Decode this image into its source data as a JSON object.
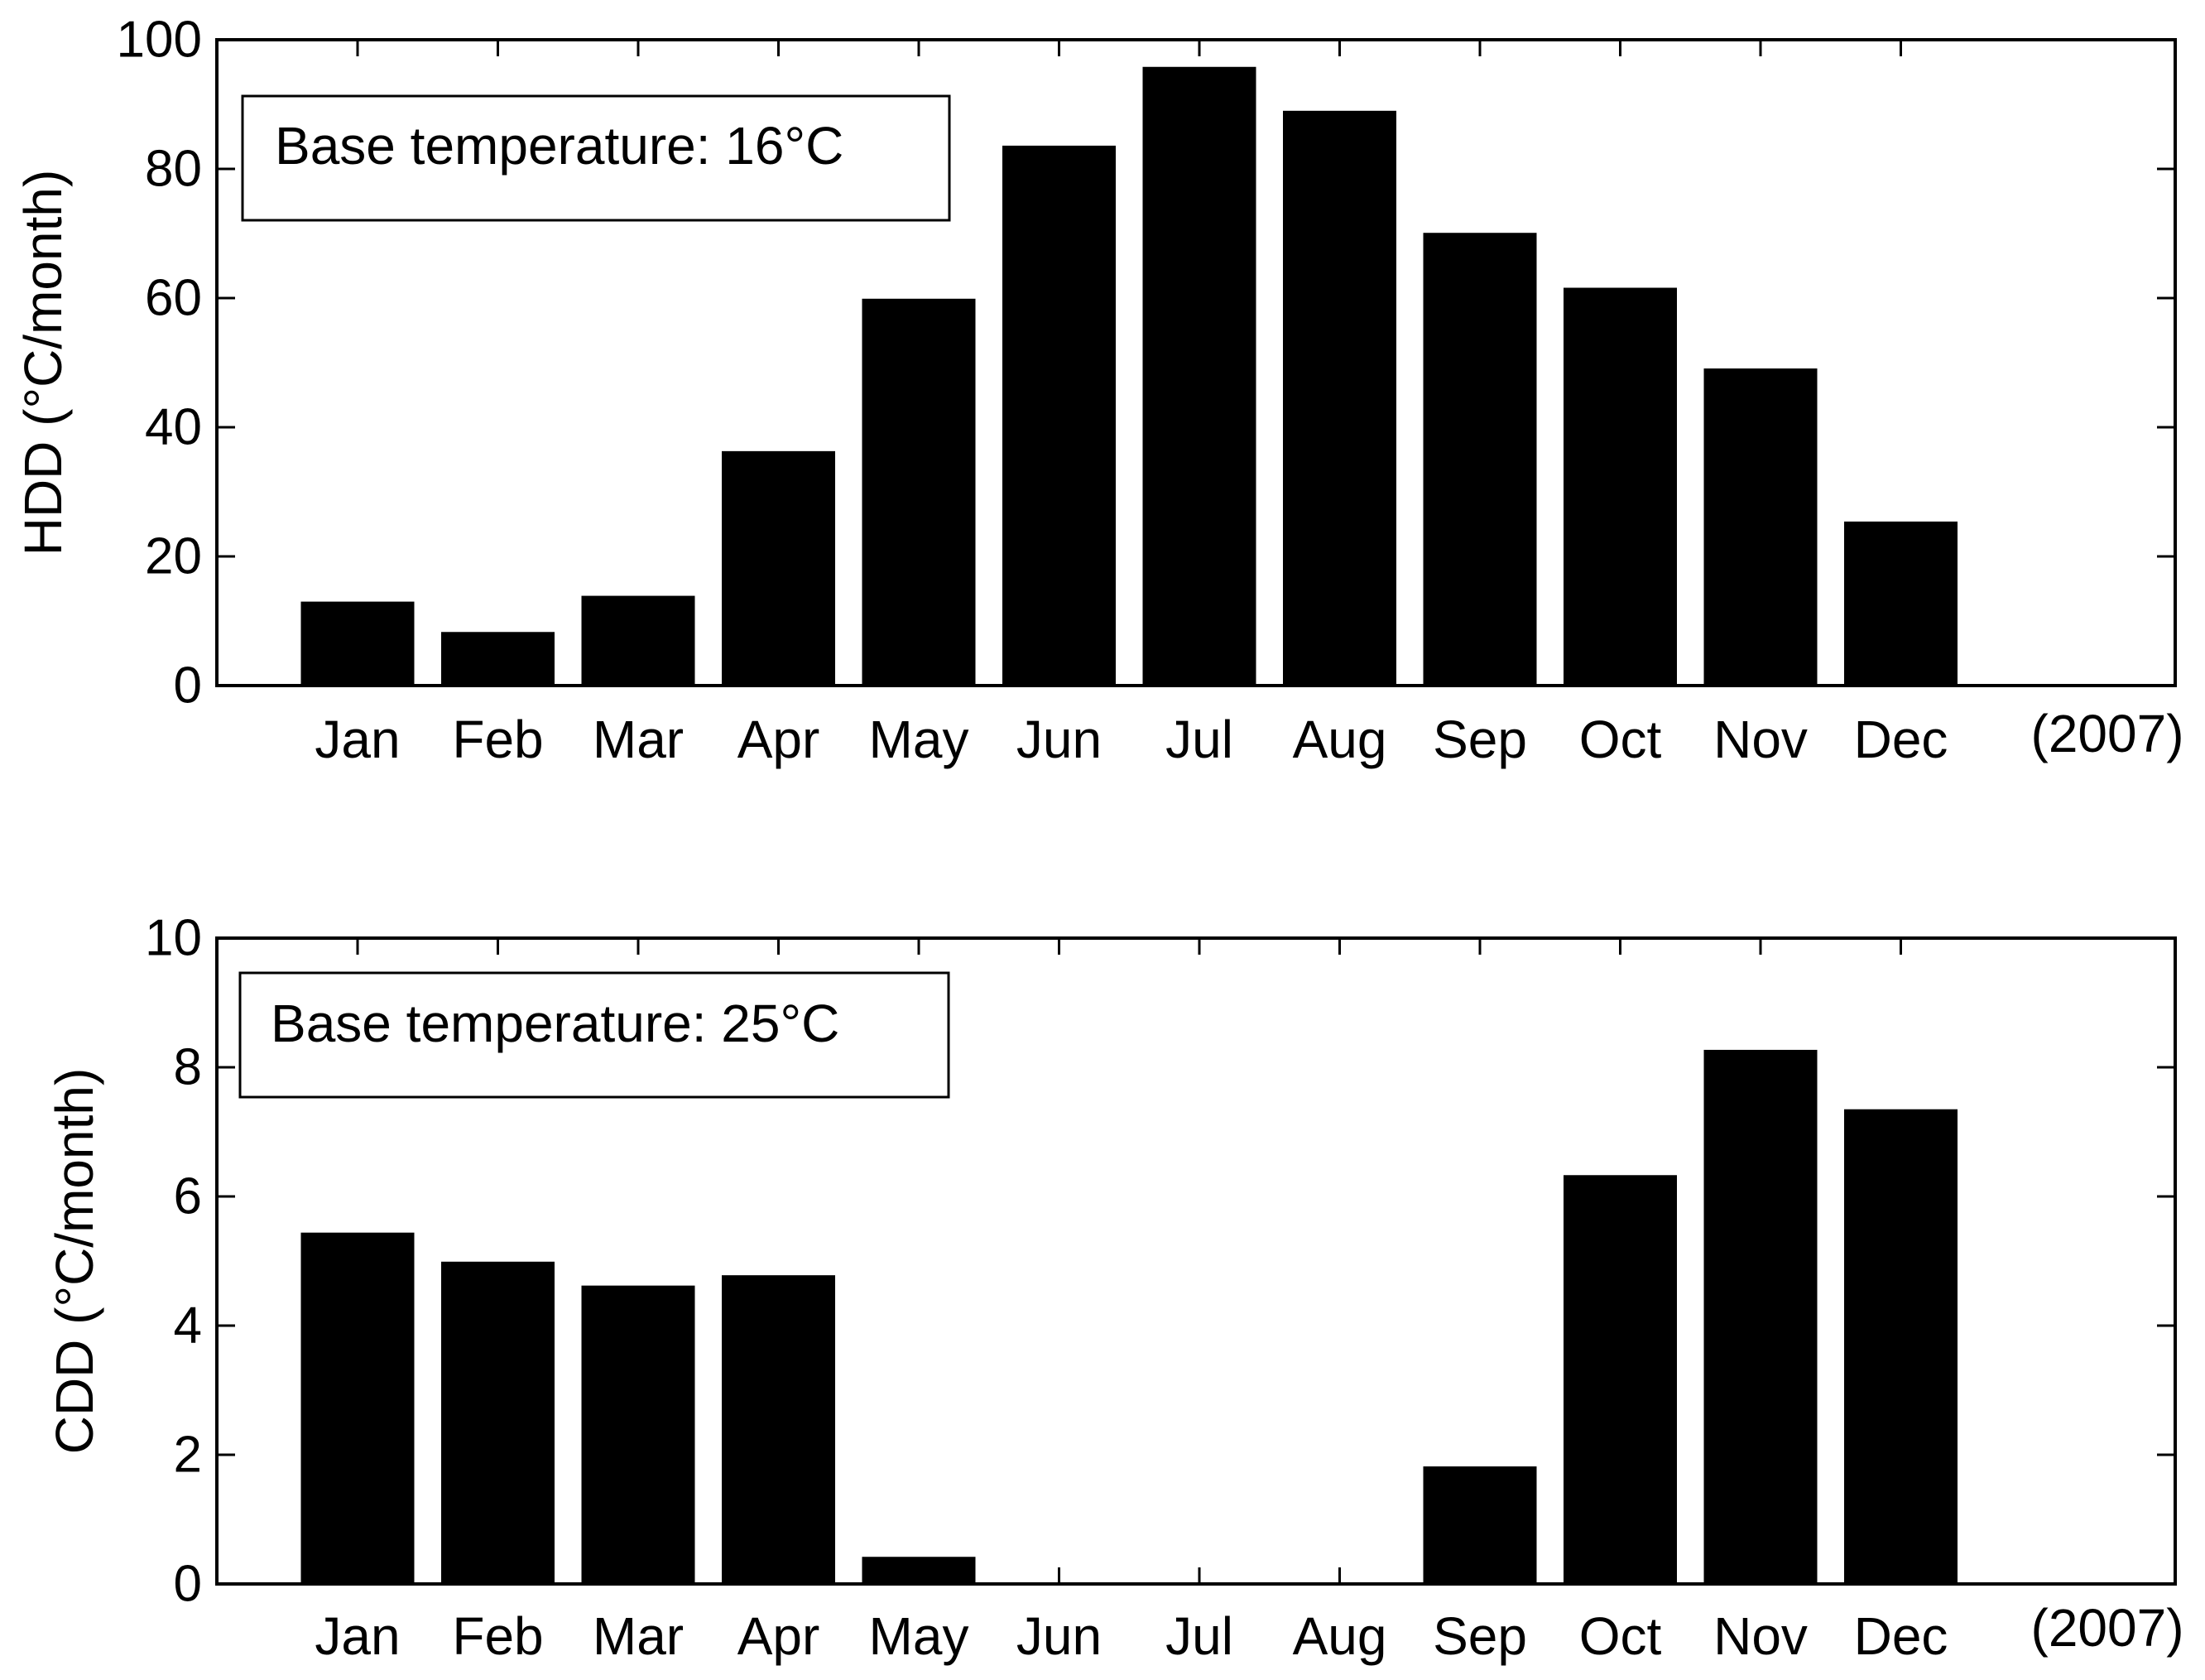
{
  "chart_data": [
    {
      "type": "bar",
      "categories": [
        "Jan",
        "Feb",
        "Mar",
        "Apr",
        "May",
        "Jun",
        "Jul",
        "Aug",
        "Sep",
        "Oct",
        "Nov",
        "Dec"
      ],
      "values": [
        13,
        8.3,
        13.9,
        36.3,
        59.9,
        83.6,
        95.8,
        89,
        70.1,
        61.6,
        49.1,
        25.4
      ],
      "ylabel": "HDD (°C/month)",
      "ylim": [
        0,
        100
      ],
      "yticks": [
        0,
        20,
        40,
        60,
        80,
        100
      ],
      "extra_label": "(2007)",
      "annotation": "Base temperature: 16°C",
      "annotation_placement": "top-left",
      "grid": false,
      "bar_color": "#000000"
    },
    {
      "type": "bar",
      "categories": [
        "Jan",
        "Feb",
        "Mar",
        "Apr",
        "May",
        "Jun",
        "Jul",
        "Aug",
        "Sep",
        "Oct",
        "Nov",
        "Dec"
      ],
      "values": [
        5.44,
        4.99,
        4.62,
        4.78,
        0.42,
        0,
        0,
        0,
        1.82,
        6.33,
        8.27,
        7.35
      ],
      "ylabel": "CDD (°C/month)",
      "ylim": [
        0,
        10
      ],
      "yticks": [
        0,
        2,
        4,
        6,
        8,
        10
      ],
      "extra_label": "(2007)",
      "annotation": "Base temperature: 25°C",
      "annotation_placement": "top-left",
      "grid": false,
      "bar_color": "#000000"
    }
  ]
}
